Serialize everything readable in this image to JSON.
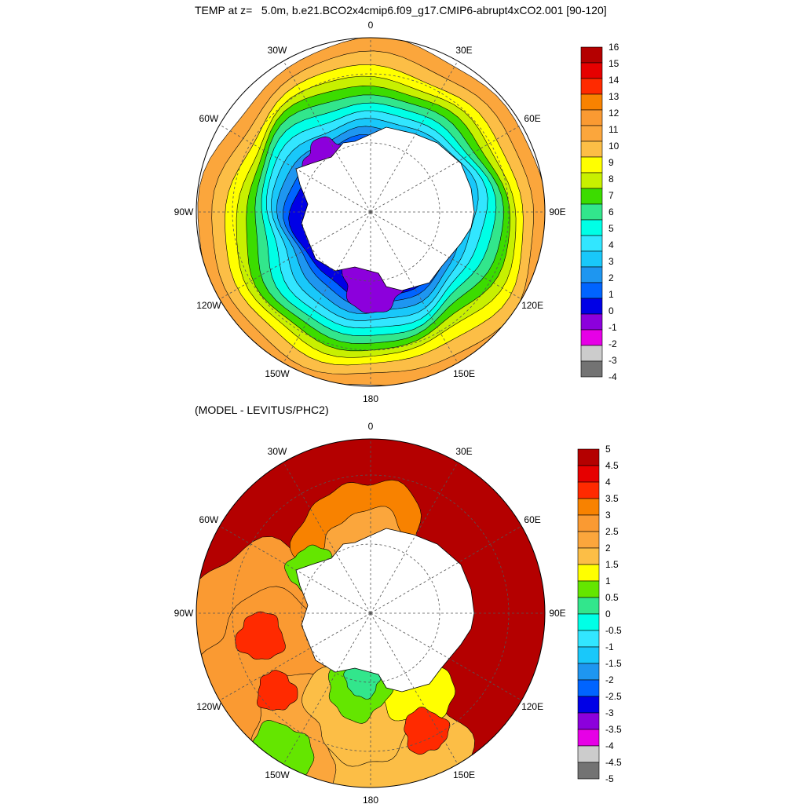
{
  "title": "TEMP at z=   5.0m, b.e21.BCO2x4cmip6.f09_g17.CMIP6-abrupt4xCO2.001 [90-120]",
  "subtitle": "(MODEL - LEVITUS/PHC2)",
  "lon_labels": [
    "0",
    "30E",
    "60E",
    "90E",
    "120E",
    "150E",
    "180",
    "150W",
    "120W",
    "90W",
    "60W",
    "30W"
  ],
  "maps": [
    {
      "name": "model-temperature",
      "colorbar_labels": [
        "16",
        "15",
        "14",
        "13",
        "12",
        "11",
        "10",
        "9",
        "8",
        "7",
        "6",
        "5",
        "4",
        "3",
        "2",
        "1",
        "0",
        "-1",
        "-2",
        "-3",
        "-4"
      ],
      "colors": [
        "#b40000",
        "#e60000",
        "#ff2a00",
        "#f88200",
        "#fa9a32",
        "#fba63c",
        "#fcbe46",
        "#ffff00",
        "#c8f000",
        "#3cdc00",
        "#32e68c",
        "#00ffe6",
        "#32e6ff",
        "#19c8fa",
        "#1e96f0",
        "#0064ff",
        "#0000e6",
        "#8c00dc",
        "#e600e6",
        "#cccccc",
        "#737373"
      ]
    },
    {
      "name": "model-minus-observed",
      "colorbar_labels": [
        "5",
        "4.5",
        "4",
        "3.5",
        "3",
        "2.5",
        "2",
        "1.5",
        "1",
        "0.5",
        "0",
        "-0.5",
        "-1",
        "-1.5",
        "-2",
        "-2.5",
        "-3",
        "-3.5",
        "-4",
        "-4.5",
        "-5"
      ],
      "colors": [
        "#b40000",
        "#e60000",
        "#ff2a00",
        "#f88200",
        "#fa9a32",
        "#fba63c",
        "#fcbe46",
        "#ffff00",
        "#64e600",
        "#32e68c",
        "#00ffe6",
        "#32e6ff",
        "#19c8fa",
        "#1e96f0",
        "#0064ff",
        "#0000e6",
        "#8c00dc",
        "#e600e6",
        "#cccccc",
        "#737373"
      ]
    }
  ]
}
